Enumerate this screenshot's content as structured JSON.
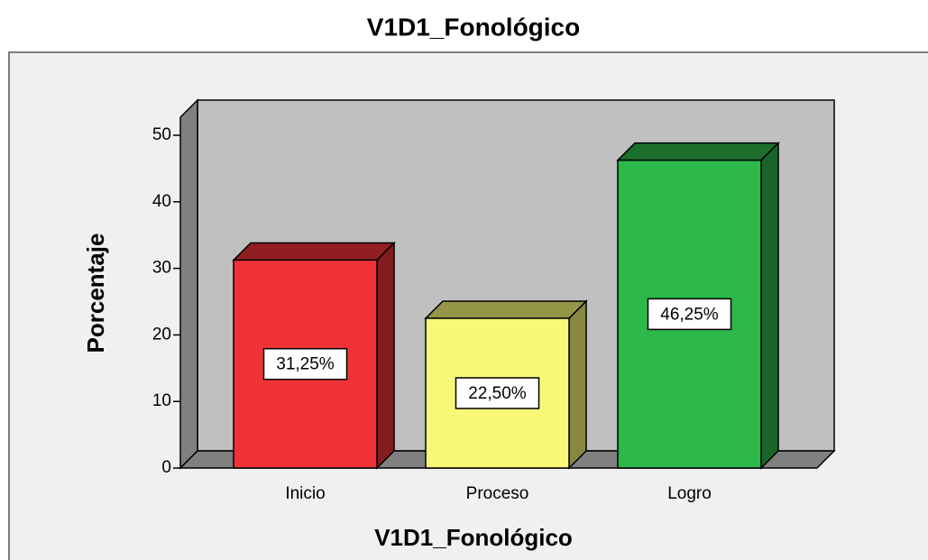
{
  "chart_data": {
    "type": "bar3d",
    "title": "V1D1_Fonológico",
    "x_label": "V1D1_Fonológico",
    "y_label": "Porcentaje",
    "categories": [
      "Inicio",
      "Proceso",
      "Logro"
    ],
    "values": [
      31.25,
      22.5,
      46.25
    ],
    "value_labels": [
      "31,25%",
      "22,50%",
      "46,25%"
    ],
    "colors": [
      "#f03238",
      "#f8f878",
      "#2db84a"
    ],
    "ylim": [
      0,
      50
    ],
    "yticks": [
      0,
      10,
      20,
      30,
      40,
      50
    ]
  }
}
